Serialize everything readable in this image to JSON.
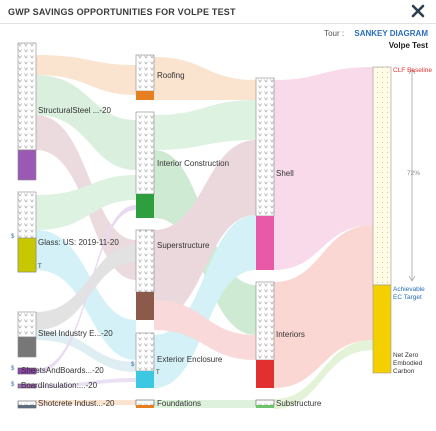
{
  "dialog": {
    "title": "GWP SAVINGS OPPORTUNITIES FOR VOLPE TEST",
    "tour_label": "Tour :",
    "tour_link": "SANKEY DIAGRAM",
    "project_name": "Volpe Test"
  },
  "sankey": {
    "left_nodes": [
      {
        "label": "StructuralSteel ...-20",
        "color": "#9b59b6"
      },
      {
        "label": "Glass: US: 2019-11-20",
        "color": "#c8c800"
      },
      {
        "label": "Steel Industry E...-20",
        "color": "#777777"
      },
      {
        "label": "SheetsAndBoards...-20",
        "color": "#8e44ad"
      },
      {
        "label": "BoardInsulation:...-20",
        "color": "#a569bd"
      },
      {
        "label": "Shotcrete Indust...-20",
        "color": "#5d6d7e"
      }
    ],
    "middle_nodes": [
      {
        "label": "Roofing",
        "color": "#e67e22"
      },
      {
        "label": "Interior Construction",
        "color": "#2e9e3e"
      },
      {
        "label": "Superstructure",
        "color": "#8b5a4a"
      },
      {
        "label": "Exterior Enclosure",
        "color": "#3cc8e0"
      },
      {
        "label": "Foundations",
        "color": "#e67e22"
      }
    ],
    "right_nodes": [
      {
        "label": "Shell",
        "color": "#e85aa8"
      },
      {
        "label": "Interiors",
        "color": "#e23030"
      },
      {
        "label": "Substructure",
        "color": "#6cc36c"
      }
    ],
    "target_bar": {
      "top_label": "CLF Baseline",
      "percent_label": "72%",
      "middle_label": "Achievable EC Target",
      "bottom_label": "Net Zero Embodied Carbon",
      "fill_color": "#f5d000"
    },
    "s_marker": "$",
    "t_marker": "T"
  }
}
